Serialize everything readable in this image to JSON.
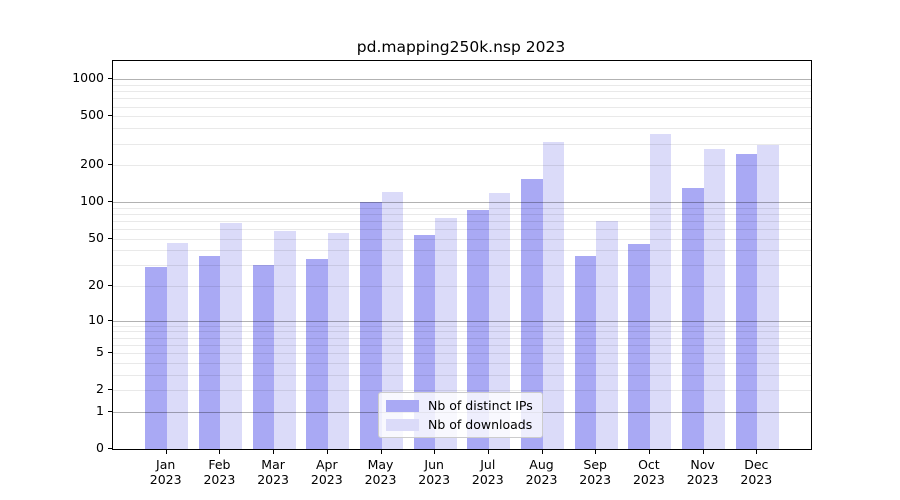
{
  "chart_data": {
    "type": "bar",
    "title": "pd.mapping250k.nsp 2023",
    "categories": [
      "Jan",
      "Feb",
      "Mar",
      "Apr",
      "May",
      "Jun",
      "Jul",
      "Aug",
      "Sep",
      "Oct",
      "Nov",
      "Dec"
    ],
    "year_label": "2023",
    "series": [
      {
        "name": "Nb of distinct IPs",
        "color": "#a9a9f4",
        "values": [
          29,
          36,
          30,
          34,
          101,
          54,
          86,
          155,
          36,
          45,
          130,
          245
        ]
      },
      {
        "name": "Nb of downloads",
        "color": "#dbdbf9",
        "values": [
          46,
          67,
          58,
          56,
          122,
          74,
          119,
          310,
          70,
          360,
          272,
          295
        ]
      }
    ],
    "y_ticks": [
      0,
      1,
      2,
      5,
      10,
      20,
      50,
      100,
      200,
      500,
      1000
    ],
    "y_scale": "log1p",
    "ylim": [
      0,
      1400
    ],
    "grid": "both",
    "legend_position": "lower center",
    "colors": {
      "major_grid": "rgba(0,0,0,0.30)",
      "minor_grid": "rgba(0,0,0,0.085)",
      "axis": "#000000",
      "legend_border": "#cccccc"
    }
  }
}
